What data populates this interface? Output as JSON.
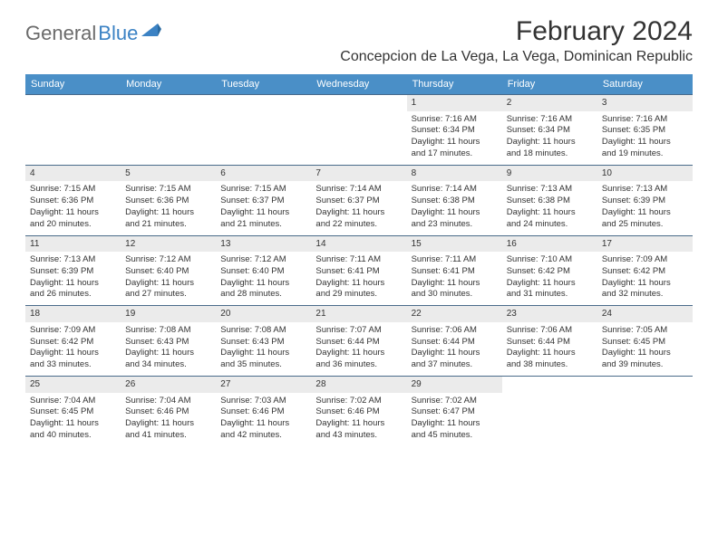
{
  "logo": {
    "text1": "General",
    "text2": "Blue"
  },
  "title": "February 2024",
  "location": "Concepcion de La Vega, La Vega, Dominican Republic",
  "colors": {
    "header_bg": "#4a8fc7",
    "header_fg": "#ffffff",
    "border": "#4a6b8a",
    "daynum_bg": "#ebebeb",
    "text": "#333333",
    "logo_gray": "#6b6b6b",
    "logo_blue": "#3b82c4"
  },
  "day_headers": [
    "Sunday",
    "Monday",
    "Tuesday",
    "Wednesday",
    "Thursday",
    "Friday",
    "Saturday"
  ],
  "weeks": [
    [
      null,
      null,
      null,
      null,
      {
        "n": "1",
        "sr": "7:16 AM",
        "ss": "6:34 PM",
        "dl1": "11 hours",
        "dl2": "and 17 minutes."
      },
      {
        "n": "2",
        "sr": "7:16 AM",
        "ss": "6:34 PM",
        "dl1": "11 hours",
        "dl2": "and 18 minutes."
      },
      {
        "n": "3",
        "sr": "7:16 AM",
        "ss": "6:35 PM",
        "dl1": "11 hours",
        "dl2": "and 19 minutes."
      }
    ],
    [
      {
        "n": "4",
        "sr": "7:15 AM",
        "ss": "6:36 PM",
        "dl1": "11 hours",
        "dl2": "and 20 minutes."
      },
      {
        "n": "5",
        "sr": "7:15 AM",
        "ss": "6:36 PM",
        "dl1": "11 hours",
        "dl2": "and 21 minutes."
      },
      {
        "n": "6",
        "sr": "7:15 AM",
        "ss": "6:37 PM",
        "dl1": "11 hours",
        "dl2": "and 21 minutes."
      },
      {
        "n": "7",
        "sr": "7:14 AM",
        "ss": "6:37 PM",
        "dl1": "11 hours",
        "dl2": "and 22 minutes."
      },
      {
        "n": "8",
        "sr": "7:14 AM",
        "ss": "6:38 PM",
        "dl1": "11 hours",
        "dl2": "and 23 minutes."
      },
      {
        "n": "9",
        "sr": "7:13 AM",
        "ss": "6:38 PM",
        "dl1": "11 hours",
        "dl2": "and 24 minutes."
      },
      {
        "n": "10",
        "sr": "7:13 AM",
        "ss": "6:39 PM",
        "dl1": "11 hours",
        "dl2": "and 25 minutes."
      }
    ],
    [
      {
        "n": "11",
        "sr": "7:13 AM",
        "ss": "6:39 PM",
        "dl1": "11 hours",
        "dl2": "and 26 minutes."
      },
      {
        "n": "12",
        "sr": "7:12 AM",
        "ss": "6:40 PM",
        "dl1": "11 hours",
        "dl2": "and 27 minutes."
      },
      {
        "n": "13",
        "sr": "7:12 AM",
        "ss": "6:40 PM",
        "dl1": "11 hours",
        "dl2": "and 28 minutes."
      },
      {
        "n": "14",
        "sr": "7:11 AM",
        "ss": "6:41 PM",
        "dl1": "11 hours",
        "dl2": "and 29 minutes."
      },
      {
        "n": "15",
        "sr": "7:11 AM",
        "ss": "6:41 PM",
        "dl1": "11 hours",
        "dl2": "and 30 minutes."
      },
      {
        "n": "16",
        "sr": "7:10 AM",
        "ss": "6:42 PM",
        "dl1": "11 hours",
        "dl2": "and 31 minutes."
      },
      {
        "n": "17",
        "sr": "7:09 AM",
        "ss": "6:42 PM",
        "dl1": "11 hours",
        "dl2": "and 32 minutes."
      }
    ],
    [
      {
        "n": "18",
        "sr": "7:09 AM",
        "ss": "6:42 PM",
        "dl1": "11 hours",
        "dl2": "and 33 minutes."
      },
      {
        "n": "19",
        "sr": "7:08 AM",
        "ss": "6:43 PM",
        "dl1": "11 hours",
        "dl2": "and 34 minutes."
      },
      {
        "n": "20",
        "sr": "7:08 AM",
        "ss": "6:43 PM",
        "dl1": "11 hours",
        "dl2": "and 35 minutes."
      },
      {
        "n": "21",
        "sr": "7:07 AM",
        "ss": "6:44 PM",
        "dl1": "11 hours",
        "dl2": "and 36 minutes."
      },
      {
        "n": "22",
        "sr": "7:06 AM",
        "ss": "6:44 PM",
        "dl1": "11 hours",
        "dl2": "and 37 minutes."
      },
      {
        "n": "23",
        "sr": "7:06 AM",
        "ss": "6:44 PM",
        "dl1": "11 hours",
        "dl2": "and 38 minutes."
      },
      {
        "n": "24",
        "sr": "7:05 AM",
        "ss": "6:45 PM",
        "dl1": "11 hours",
        "dl2": "and 39 minutes."
      }
    ],
    [
      {
        "n": "25",
        "sr": "7:04 AM",
        "ss": "6:45 PM",
        "dl1": "11 hours",
        "dl2": "and 40 minutes."
      },
      {
        "n": "26",
        "sr": "7:04 AM",
        "ss": "6:46 PM",
        "dl1": "11 hours",
        "dl2": "and 41 minutes."
      },
      {
        "n": "27",
        "sr": "7:03 AM",
        "ss": "6:46 PM",
        "dl1": "11 hours",
        "dl2": "and 42 minutes."
      },
      {
        "n": "28",
        "sr": "7:02 AM",
        "ss": "6:46 PM",
        "dl1": "11 hours",
        "dl2": "and 43 minutes."
      },
      {
        "n": "29",
        "sr": "7:02 AM",
        "ss": "6:47 PM",
        "dl1": "11 hours",
        "dl2": "and 45 minutes."
      },
      null,
      null
    ]
  ],
  "labels": {
    "sunrise": "Sunrise:",
    "sunset": "Sunset:",
    "daylight": "Daylight:"
  }
}
